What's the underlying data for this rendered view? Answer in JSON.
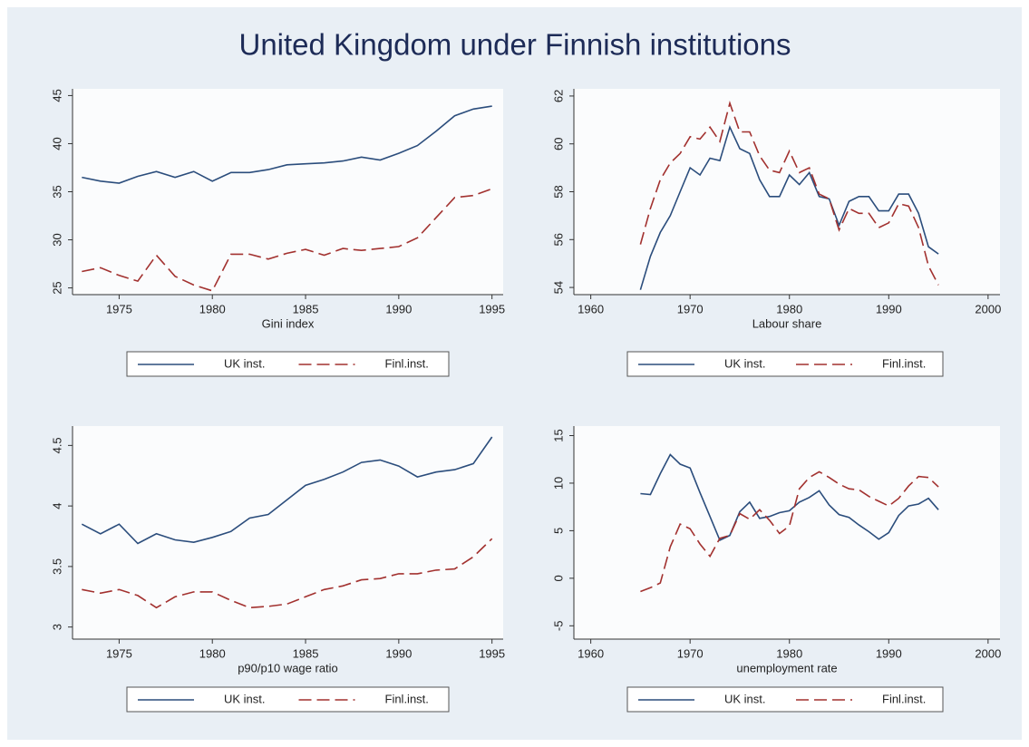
{
  "title": "United Kingdom under Finnish institutions",
  "chart_data": [
    {
      "type": "line",
      "xlabel": "Gini index",
      "x": [
        1973,
        1974,
        1975,
        1976,
        1977,
        1978,
        1979,
        1980,
        1981,
        1982,
        1983,
        1984,
        1985,
        1986,
        1987,
        1988,
        1989,
        1990,
        1991,
        1992,
        1993,
        1994,
        1995
      ],
      "xlim": [
        1972.5,
        1995.6
      ],
      "xticks": [
        1975,
        1980,
        1985,
        1990,
        1995
      ],
      "ylim": [
        24.3,
        45.7
      ],
      "yticks": [
        25,
        30,
        35,
        40,
        45
      ],
      "series": [
        {
          "name": "UK inst.",
          "color": "#2b4d7c",
          "dashed": false,
          "values": [
            36.5,
            36.1,
            35.9,
            36.6,
            37.1,
            36.5,
            37.1,
            36.1,
            37.0,
            37.0,
            37.3,
            37.8,
            37.9,
            38.0,
            38.2,
            38.6,
            38.3,
            39.0,
            39.8,
            41.3,
            42.9,
            43.6,
            43.9
          ]
        },
        {
          "name": "Finl.inst.",
          "color": "#a2312f",
          "dashed": true,
          "values": [
            26.7,
            27.1,
            26.3,
            25.7,
            28.4,
            26.2,
            25.3,
            24.7,
            28.5,
            28.5,
            28.0,
            28.6,
            29.0,
            28.4,
            29.1,
            28.9,
            29.1,
            29.3,
            30.2,
            32.3,
            34.4,
            34.6,
            35.3
          ]
        }
      ]
    },
    {
      "type": "line",
      "xlabel": "Labour share",
      "x": [
        1965,
        1966,
        1967,
        1968,
        1969,
        1970,
        1971,
        1972,
        1973,
        1974,
        1975,
        1976,
        1977,
        1978,
        1979,
        1980,
        1981,
        1982,
        1983,
        1984,
        1985,
        1986,
        1987,
        1988,
        1989,
        1990,
        1991,
        1992,
        1993,
        1994,
        1995
      ],
      "xlim": [
        1958.3,
        2001.2
      ],
      "xticks": [
        1960,
        1970,
        1980,
        1990,
        2000
      ],
      "ylim": [
        53.7,
        62.3
      ],
      "yticks": [
        54,
        56,
        58,
        60,
        62
      ],
      "series": [
        {
          "name": "UK inst.",
          "color": "#2b4d7c",
          "dashed": false,
          "values": [
            53.9,
            55.3,
            56.3,
            57.0,
            58.0,
            59.0,
            58.7,
            59.4,
            59.3,
            60.7,
            59.8,
            59.6,
            58.5,
            57.8,
            57.8,
            58.7,
            58.3,
            58.8,
            57.8,
            57.7,
            56.6,
            57.6,
            57.8,
            57.8,
            57.2,
            57.2,
            57.9,
            57.9,
            57.1,
            55.7,
            55.4
          ]
        },
        {
          "name": "Finl.inst.",
          "color": "#a2312f",
          "dashed": true,
          "values": [
            55.8,
            57.3,
            58.5,
            59.2,
            59.6,
            60.3,
            60.2,
            60.7,
            60.1,
            61.7,
            60.5,
            60.5,
            59.5,
            58.9,
            58.8,
            59.7,
            58.8,
            59.0,
            57.9,
            57.7,
            56.4,
            57.3,
            57.1,
            57.1,
            56.5,
            56.7,
            57.5,
            57.4,
            56.5,
            54.9,
            54.1
          ]
        }
      ]
    },
    {
      "type": "line",
      "xlabel": "p90/p10 wage ratio",
      "x": [
        1973,
        1974,
        1975,
        1976,
        1977,
        1978,
        1979,
        1980,
        1981,
        1982,
        1983,
        1984,
        1985,
        1986,
        1987,
        1988,
        1989,
        1990,
        1991,
        1992,
        1993,
        1994,
        1995
      ],
      "xlim": [
        1972.5,
        1995.6
      ],
      "xticks": [
        1975,
        1980,
        1985,
        1990,
        1995
      ],
      "ylim": [
        2.9,
        4.66
      ],
      "yticks": [
        3,
        3.5,
        4,
        4.5
      ],
      "series": [
        {
          "name": "UK inst.",
          "color": "#2b4d7c",
          "dashed": false,
          "values": [
            3.85,
            3.77,
            3.85,
            3.69,
            3.77,
            3.72,
            3.7,
            3.74,
            3.79,
            3.9,
            3.93,
            4.05,
            4.17,
            4.22,
            4.28,
            4.36,
            4.38,
            4.33,
            4.24,
            4.28,
            4.3,
            4.35,
            4.57
          ]
        },
        {
          "name": "Finl.inst.",
          "color": "#a2312f",
          "dashed": true,
          "values": [
            3.31,
            3.28,
            3.31,
            3.26,
            3.16,
            3.25,
            3.29,
            3.29,
            3.22,
            3.16,
            3.17,
            3.19,
            3.25,
            3.31,
            3.34,
            3.39,
            3.4,
            3.44,
            3.44,
            3.47,
            3.48,
            3.58,
            3.73
          ]
        }
      ]
    },
    {
      "type": "line",
      "xlabel": "unemployment rate",
      "x": [
        1965,
        1966,
        1967,
        1968,
        1969,
        1970,
        1971,
        1972,
        1973,
        1974,
        1975,
        1976,
        1977,
        1978,
        1979,
        1980,
        1981,
        1982,
        1983,
        1984,
        1985,
        1986,
        1987,
        1988,
        1989,
        1990,
        1991,
        1992,
        1993,
        1994,
        1995
      ],
      "xlim": [
        1958.3,
        2001.2
      ],
      "xticks": [
        1960,
        1970,
        1980,
        1990,
        2000
      ],
      "ylim": [
        -6.4,
        16
      ],
      "yticks": [
        -5,
        0,
        5,
        10,
        15
      ],
      "series": [
        {
          "name": "UK inst.",
          "color": "#2b4d7c",
          "dashed": false,
          "values": [
            8.9,
            8.8,
            11.0,
            13.0,
            12.0,
            11.6,
            9.0,
            6.5,
            4.0,
            4.5,
            7.0,
            8.0,
            6.3,
            6.5,
            6.9,
            7.1,
            8.0,
            8.5,
            9.2,
            7.7,
            6.7,
            6.4,
            5.6,
            4.9,
            4.1,
            4.8,
            6.6,
            7.6,
            7.8,
            8.4,
            7.2
          ]
        },
        {
          "name": "Finl.inst.",
          "color": "#a2312f",
          "dashed": true,
          "values": [
            -1.4,
            -1.0,
            -0.5,
            3.3,
            5.7,
            5.2,
            3.6,
            2.3,
            4.2,
            4.5,
            6.8,
            6.2,
            7.2,
            6.1,
            4.7,
            5.5,
            9.4,
            10.6,
            11.2,
            10.6,
            9.9,
            9.4,
            9.3,
            8.6,
            8.1,
            7.6,
            8.4,
            9.7,
            10.7,
            10.6,
            9.6
          ]
        }
      ]
    }
  ]
}
